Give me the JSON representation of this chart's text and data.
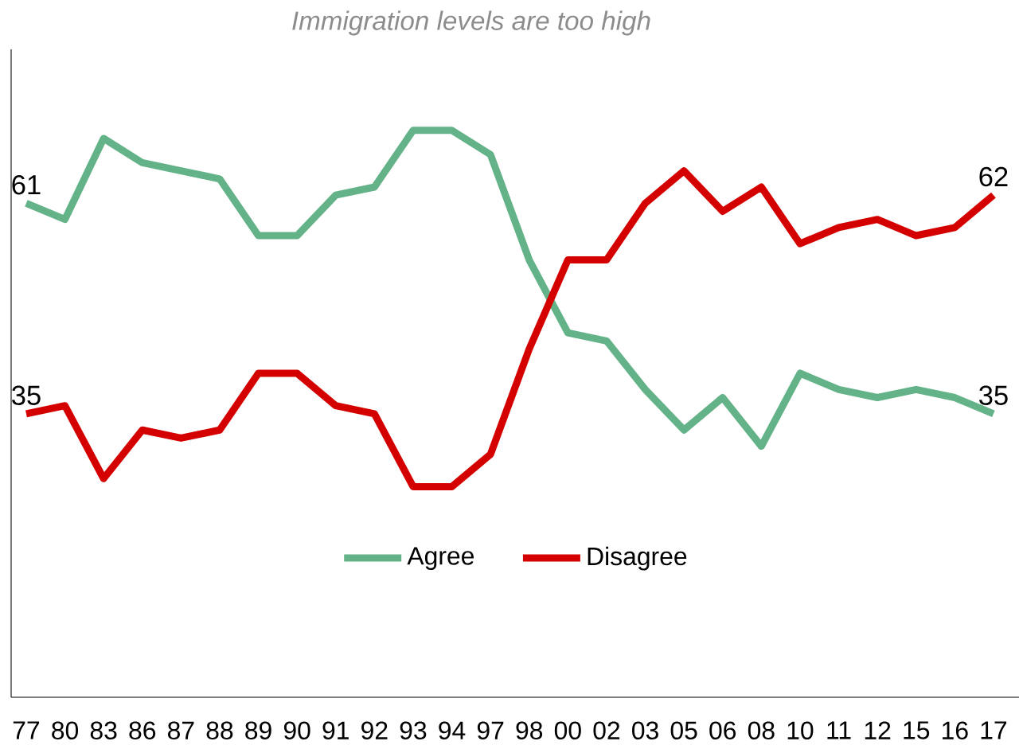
{
  "chart_data": {
    "type": "line",
    "title": "Immigration levels are too high",
    "categories": [
      "77",
      "80",
      "83",
      "86",
      "87",
      "88",
      "89",
      "90",
      "91",
      "92",
      "93",
      "94",
      "97",
      "98",
      "00",
      "02",
      "03",
      "05",
      "06",
      "08",
      "10",
      "11",
      "12",
      "15",
      "16",
      "17"
    ],
    "series": [
      {
        "name": "Agree",
        "color": "#64b388",
        "values": [
          61,
          59,
          69,
          66,
          65,
          64,
          57,
          57,
          62,
          63,
          70,
          70,
          67,
          54,
          45,
          44,
          38,
          33,
          37,
          31,
          40,
          38,
          37,
          38,
          37,
          35
        ],
        "value_labels": [
          "61",
          null,
          null,
          null,
          null,
          null,
          null,
          null,
          null,
          null,
          null,
          null,
          null,
          null,
          null,
          null,
          null,
          null,
          null,
          null,
          null,
          null,
          null,
          null,
          null,
          "35"
        ]
      },
      {
        "name": "Disagree",
        "color": "#d40000",
        "values": [
          35,
          36,
          27,
          33,
          32,
          33,
          40,
          40,
          36,
          35,
          26,
          26,
          30,
          43,
          54,
          54,
          61,
          65,
          60,
          63,
          56,
          58,
          59,
          57,
          58,
          62
        ],
        "value_labels": [
          "35",
          null,
          null,
          null,
          null,
          null,
          null,
          null,
          null,
          null,
          null,
          null,
          null,
          null,
          null,
          null,
          null,
          null,
          null,
          null,
          null,
          null,
          null,
          null,
          null,
          "62"
        ]
      }
    ],
    "ylim": [
      0,
      80
    ],
    "tick_labels": "x",
    "grid": false,
    "legend": "bottom",
    "marker": "none",
    "line_style": "solid"
  }
}
